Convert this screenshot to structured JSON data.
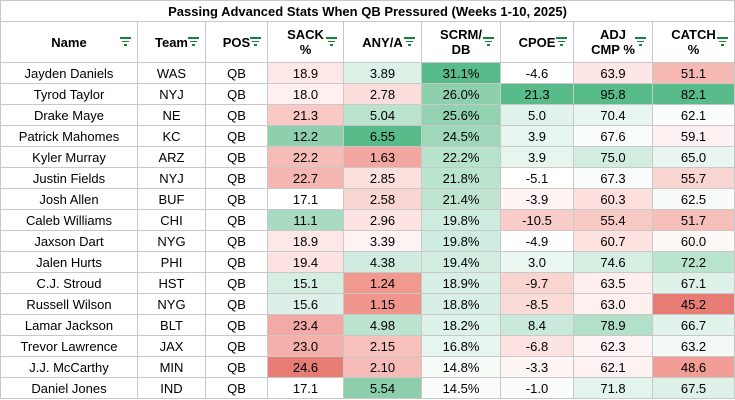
{
  "title": "Passing Advanced Stats When QB Pressured (Weeks 1-10, 2025)",
  "headers": [
    {
      "label": "Name",
      "lines": [
        "Name"
      ]
    },
    {
      "label": "Team",
      "lines": [
        "Team"
      ]
    },
    {
      "label": "POS",
      "lines": [
        "POS"
      ]
    },
    {
      "label": "SACK %",
      "lines": [
        "SACK",
        "%"
      ]
    },
    {
      "label": "ANY/A",
      "lines": [
        "ANY/A"
      ]
    },
    {
      "label": "SCRM/ DB",
      "lines": [
        "SCRM/",
        "DB"
      ]
    },
    {
      "label": "CPOE",
      "lines": [
        "CPOE"
      ]
    },
    {
      "label": "ADJ CMP %",
      "lines": [
        "ADJ",
        "CMP %"
      ]
    },
    {
      "label": "CATCH %",
      "lines": [
        "CATCH",
        "%"
      ]
    }
  ],
  "colors": {
    "high_green": "#57bb8a",
    "white": "#ffffff",
    "low_red": "#e67c73",
    "border": "#c8c8c8",
    "filter_icon": "#188038"
  },
  "rows": [
    {
      "name": "Jayden Daniels",
      "team": "WAS",
      "pos": "QB",
      "sack": "18.9",
      "anya": "3.89",
      "scrm": "31.1%",
      "cpoe": "-4.6",
      "adj": "63.9",
      "catch": "51.1",
      "bg": [
        "#fde8e7",
        "#ddf2e7",
        "#57bb8a",
        "#ffffff",
        "#fde6e5",
        "#f5b8b3"
      ]
    },
    {
      "name": "Tyrod Taylor",
      "team": "NYJ",
      "pos": "QB",
      "sack": "18.0",
      "anya": "2.78",
      "scrm": "26.0%",
      "cpoe": "21.3",
      "adj": "95.8",
      "catch": "82.1",
      "bg": [
        "#fdf0ef",
        "#fbdedc",
        "#8ed0ae",
        "#57bb8a",
        "#57bb8a",
        "#57bb8a"
      ]
    },
    {
      "name": "Drake Maye",
      "team": "NE",
      "pos": "QB",
      "sack": "21.3",
      "anya": "5.04",
      "scrm": "25.6%",
      "cpoe": "5.0",
      "adj": "70.4",
      "catch": "62.1",
      "bg": [
        "#f8c9c5",
        "#b9e3cd",
        "#93d2b1",
        "#e1f3ea",
        "#e9f6ef",
        "#fbfdfc"
      ]
    },
    {
      "name": "Patrick Mahomes",
      "team": "KC",
      "pos": "QB",
      "sack": "12.2",
      "anya": "6.55",
      "scrm": "24.5%",
      "cpoe": "3.9",
      "adj": "67.6",
      "catch": "59.1",
      "bg": [
        "#8ed0ae",
        "#57bb8a",
        "#9fd7ba",
        "#e6f5ed",
        "#f8fcfa",
        "#fdf2f1"
      ]
    },
    {
      "name": "Kyler Murray",
      "team": "ARZ",
      "pos": "QB",
      "sack": "22.2",
      "anya": "1.63",
      "scrm": "22.2%",
      "cpoe": "3.9",
      "adj": "75.0",
      "catch": "65.0",
      "bg": [
        "#f6bcb7",
        "#f3a59f",
        "#b7e2cc",
        "#e6f5ed",
        "#d2ede0",
        "#e9f6ef"
      ]
    },
    {
      "name": "Justin Fields",
      "team": "NYJ",
      "pos": "QB",
      "sack": "22.7",
      "anya": "2.85",
      "scrm": "21.8%",
      "cpoe": "-5.1",
      "adj": "67.3",
      "catch": "55.7",
      "bg": [
        "#f5b5b0",
        "#fbe0de",
        "#bbe4cf",
        "#ffffff",
        "#f9fcfa",
        "#f9d5d2"
      ]
    },
    {
      "name": "Josh Allen",
      "team": "BUF",
      "pos": "QB",
      "sack": "17.1",
      "anya": "2.58",
      "scrm": "21.4%",
      "cpoe": "-3.9",
      "adj": "60.3",
      "catch": "62.5",
      "bg": [
        "#ffffff",
        "#fad6d3",
        "#bfe5d1",
        "#fef4f3",
        "#fde0de",
        "#f7fcf9"
      ]
    },
    {
      "name": "Caleb Williams",
      "team": "CHI",
      "pos": "QB",
      "sack": "11.1",
      "anya": "2.96",
      "scrm": "19.8%",
      "cpoe": "-10.5",
      "adj": "55.4",
      "catch": "51.7",
      "bg": [
        "#a8dbc1",
        "#fbe4e2",
        "#cfece0",
        "#f8cdc9",
        "#f8cac6",
        "#f7bfba"
      ]
    },
    {
      "name": "Jaxson Dart",
      "team": "NYG",
      "pos": "QB",
      "sack": "18.9",
      "anya": "3.39",
      "scrm": "19.8%",
      "cpoe": "-4.9",
      "adj": "60.7",
      "catch": "60.0",
      "bg": [
        "#fde8e7",
        "#fdf3f2",
        "#cfece0",
        "#ffffff",
        "#fde2e0",
        "#fef8f7"
      ]
    },
    {
      "name": "Jalen Hurts",
      "team": "PHI",
      "pos": "QB",
      "sack": "19.4",
      "anya": "4.38",
      "scrm": "19.4%",
      "cpoe": "3.0",
      "adj": "74.6",
      "catch": "72.2",
      "bg": [
        "#fce2e0",
        "#d0ece0",
        "#d3ede1",
        "#ebf7f1",
        "#d4eee2",
        "#b8e3cd"
      ]
    },
    {
      "name": "C.J. Stroud",
      "team": "HST",
      "pos": "QB",
      "sack": "15.1",
      "anya": "1.24",
      "scrm": "18.9%",
      "cpoe": "-9.7",
      "adj": "63.5",
      "catch": "67.1",
      "bg": [
        "#d5eee2",
        "#f1998f",
        "#d8efe5",
        "#f9d4d1",
        "#feeeed",
        "#dff2e9"
      ]
    },
    {
      "name": "Russell Wilson",
      "team": "NYG",
      "pos": "QB",
      "sack": "15.6",
      "anya": "1.15",
      "scrm": "18.8%",
      "cpoe": "-8.5",
      "adj": "63.0",
      "catch": "45.2",
      "bg": [
        "#deefe8",
        "#f0958c",
        "#d8efe5",
        "#fadbd8",
        "#fef0ef",
        "#e67c73"
      ]
    },
    {
      "name": "Lamar Jackson",
      "team": "BLT",
      "pos": "QB",
      "sack": "23.4",
      "anya": "4.98",
      "scrm": "18.2%",
      "cpoe": "8.4",
      "adj": "78.9",
      "catch": "66.7",
      "bg": [
        "#f3aaa4",
        "#bbe4cf",
        "#dcf1e7",
        "#c9eadb",
        "#b3e0c9",
        "#e1f3ea"
      ]
    },
    {
      "name": "Trevor Lawrence",
      "team": "JAX",
      "pos": "QB",
      "sack": "23.0",
      "anya": "2.15",
      "scrm": "16.8%",
      "cpoe": "-6.8",
      "adj": "62.3",
      "catch": "63.2",
      "bg": [
        "#f4b0ab",
        "#f7c0bb",
        "#e6f5ed",
        "#fce2e0",
        "#fef5f4",
        "#f3faf6"
      ]
    },
    {
      "name": "J.J. McCarthy",
      "team": "MIN",
      "pos": "QB",
      "sack": "24.6",
      "anya": "2.10",
      "scrm": "14.8%",
      "cpoe": "-3.3",
      "adj": "62.1",
      "catch": "48.6",
      "bg": [
        "#e67c73",
        "#f6bdb8",
        "#f7fcf9",
        "#fef6f5",
        "#fef3f2",
        "#f29d96"
      ]
    },
    {
      "name": "Daniel Jones",
      "team": "IND",
      "pos": "QB",
      "sack": "17.1",
      "anya": "5.54",
      "scrm": "14.5%",
      "cpoe": "-1.0",
      "adj": "71.8",
      "catch": "67.5",
      "bg": [
        "#ffffff",
        "#8dcfad",
        "#fbfdfc",
        "#fbfdfc",
        "#e2f4eb",
        "#ddf1e7"
      ]
    }
  ]
}
